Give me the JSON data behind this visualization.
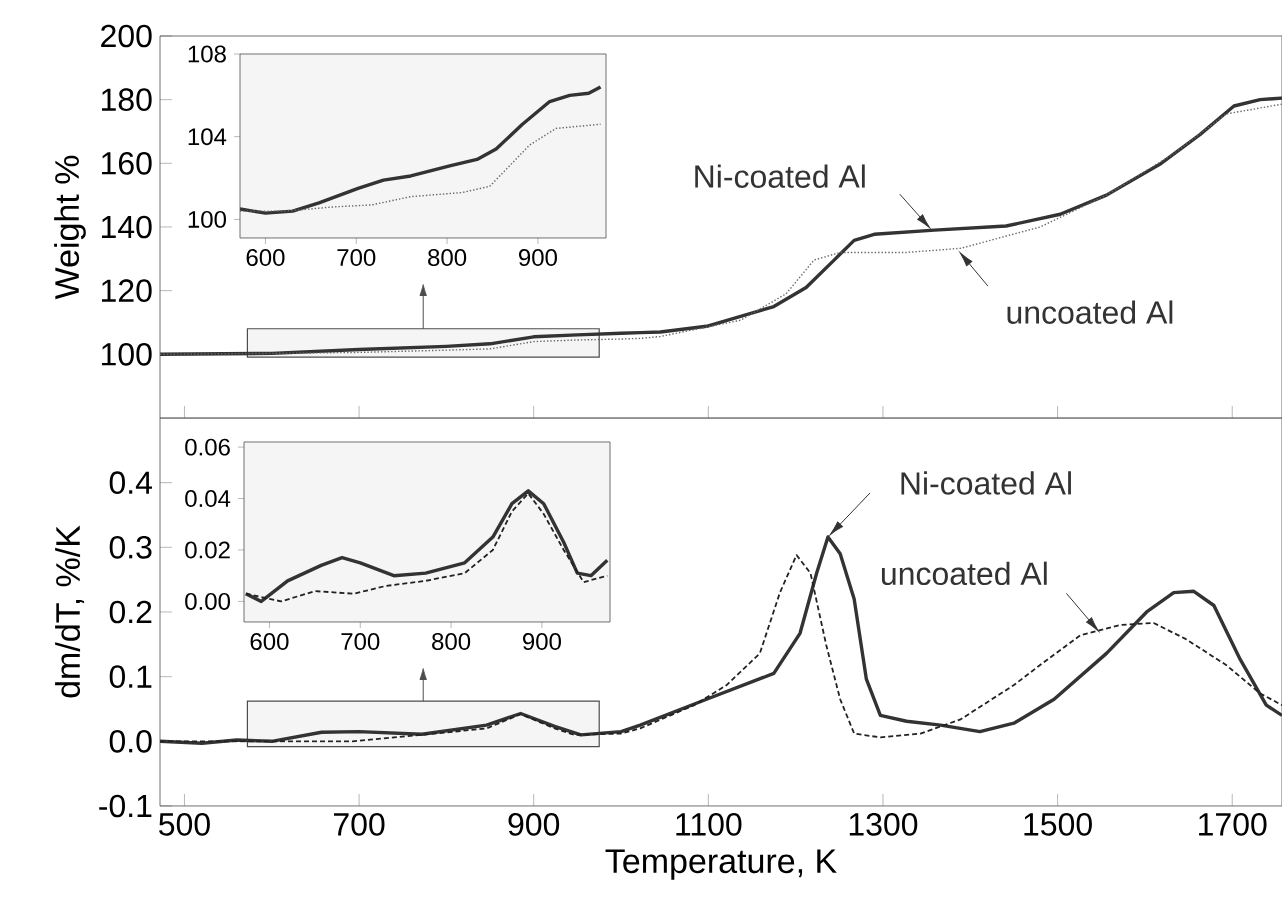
{
  "chart_data": [
    {
      "type": "line",
      "ylabel": "Weight %",
      "xlim": [
        472,
        1757
      ],
      "xticks": [
        500,
        700,
        900,
        1100,
        1300,
        1500,
        1700
      ],
      "ylim": [
        80,
        200
      ],
      "yticks": [
        100,
        120,
        140,
        160,
        180,
        200
      ],
      "tick_labels": "y",
      "series": [
        {
          "color": "#333333",
          "line_style": "solid",
          "x": [
            472,
            600,
            700,
            800,
            850,
            900,
            950,
            1000,
            1022,
            1045,
            1098,
            1175,
            1212,
            1244,
            1267,
            1290,
            1359,
            1441,
            1503,
            1556,
            1617,
            1663,
            1702,
            1732,
            1757
          ],
          "values": [
            100,
            100.3,
            101.5,
            102.5,
            103.3,
            105.5,
            106.1,
            106.6,
            106.8,
            107,
            108.8,
            115,
            121,
            129.6,
            135.8,
            137.7,
            139,
            140.3,
            144,
            150,
            159.7,
            169,
            178,
            180,
            180.5
          ]
        },
        {
          "color": "#666666",
          "line_style": "dotted",
          "x": [
            472,
            600,
            700,
            800,
            850,
            900,
            950,
            1000,
            1022,
            1045,
            1137,
            1189,
            1221,
            1251,
            1327,
            1389,
            1480,
            1556,
            1633,
            1693,
            1757
          ],
          "values": [
            100,
            100.3,
            100.6,
            101.3,
            101.7,
            104,
            104.5,
            104.8,
            105,
            105.6,
            110.7,
            119,
            129.6,
            132,
            132,
            133.3,
            140,
            150,
            163,
            175.5,
            178.6
          ]
        }
      ],
      "annotations": [
        {
          "text": "Ni-coated Al",
          "x": 1356,
          "y": 139
        },
        {
          "text": "uncoated Al",
          "x": 1386,
          "y": 132.7
        }
      ]
    },
    {
      "type": "line",
      "xlim": [
        572,
        975
      ],
      "xticks": [
        600,
        700,
        800,
        900
      ],
      "ylim": [
        99.1,
        108
      ],
      "yticks": [
        100,
        104,
        108
      ],
      "series": [
        {
          "color": "#333333",
          "line_style": "solid",
          "x": [
            572,
            600,
            630,
            659,
            702,
            730,
            760,
            804,
            833,
            854,
            883,
            913,
            935,
            956,
            969
          ],
          "values": [
            100.5,
            100.3,
            100.4,
            100.8,
            101.5,
            101.9,
            102.1,
            102.6,
            102.9,
            103.4,
            104.6,
            105.7,
            106,
            106.1,
            106.4
          ]
        },
        {
          "color": "#666666",
          "line_style": "dotted",
          "x": [
            572,
            622,
            674,
            717,
            760,
            817,
            847,
            869,
            891,
            920,
            969
          ],
          "values": [
            100.4,
            100.4,
            100.6,
            100.7,
            101.1,
            101.3,
            101.6,
            102.6,
            103.6,
            104.4,
            104.6
          ]
        }
      ]
    },
    {
      "type": "line",
      "xlabel": "Temperature, K",
      "ylabel": "dm/dT, %/K",
      "xlim": [
        472,
        1757
      ],
      "xticks": [
        500,
        700,
        900,
        1100,
        1300,
        1500,
        1700
      ],
      "ylim": [
        -0.1,
        0.5
      ],
      "yticks": [
        -0.1,
        {
          "value": 0,
          "label": "0.0"
        },
        0.1,
        0.2,
        0.3,
        0.4
      ],
      "series": [
        {
          "color": "#333333",
          "line_style": "solid",
          "x": [
            472,
            520,
            560,
            600,
            657,
            700,
            772,
            846,
            885,
            924,
            954,
            1000,
            1022,
            1098,
            1175,
            1205,
            1224,
            1237,
            1251,
            1267,
            1281,
            1297,
            1327,
            1366,
            1411,
            1450,
            1496,
            1556,
            1602,
            1633,
            1656,
            1679,
            1709,
            1739,
            1757
          ],
          "values": [
            0,
            -0.003,
            0.002,
            0,
            0.014,
            0.015,
            0.011,
            0.025,
            0.043,
            0.023,
            0.01,
            0.015,
            0.025,
            0.065,
            0.105,
            0.167,
            0.26,
            0.316,
            0.29,
            0.22,
            0.096,
            0.04,
            0.031,
            0.025,
            0.015,
            0.028,
            0.065,
            0.136,
            0.2,
            0.23,
            0.232,
            0.21,
            0.127,
            0.056,
            0.04
          ]
        },
        {
          "color": "#222222",
          "line_style": "dashed",
          "x": [
            472,
            560,
            613,
            693,
            772,
            846,
            885,
            924,
            946,
            1000,
            1022,
            1084,
            1121,
            1159,
            1182,
            1201,
            1217,
            1235,
            1251,
            1267,
            1297,
            1343,
            1389,
            1450,
            1480,
            1526,
            1572,
            1610,
            1647,
            1693,
            1732,
            1757
          ],
          "values": [
            0,
            0,
            0,
            0,
            0.01,
            0.02,
            0.042,
            0.02,
            0.01,
            0.012,
            0.02,
            0.056,
            0.087,
            0.136,
            0.23,
            0.288,
            0.26,
            0.149,
            0.065,
            0.012,
            0.006,
            0.012,
            0.034,
            0.087,
            0.118,
            0.164,
            0.18,
            0.183,
            0.158,
            0.118,
            0.074,
            0.056
          ]
        }
      ],
      "annotations": [
        {
          "text": "Ni-coated Al",
          "x": 1237,
          "y": 0.316
        },
        {
          "text": "uncoated Al",
          "x": 1549,
          "y": 0.167
        }
      ]
    },
    {
      "type": "line",
      "xlim": [
        572,
        975
      ],
      "xticks": [
        600,
        700,
        800,
        900
      ],
      "ylim": [
        -0.008,
        0.062
      ],
      "yticks": [
        {
          "value": 0,
          "label": "0.00"
        },
        0.02,
        0.04,
        0.06
      ],
      "series": [
        {
          "color": "#333333",
          "line_style": "solid",
          "x": [
            574,
            591,
            620,
            657,
            680,
            700,
            737,
            772,
            815,
            846,
            867,
            885,
            902,
            924,
            939,
            954,
            972
          ],
          "values": [
            0.003,
            0,
            0.008,
            0.014,
            0.017,
            0.015,
            0.01,
            0.011,
            0.015,
            0.025,
            0.038,
            0.043,
            0.038,
            0.023,
            0.011,
            0.01,
            0.016
          ]
        },
        {
          "color": "#222222",
          "line_style": "dashed",
          "x": [
            574,
            613,
            650,
            693,
            728,
            772,
            815,
            846,
            867,
            885,
            902,
            924,
            946,
            972
          ],
          "values": [
            0.003,
            0,
            0.004,
            0.003,
            0.006,
            0.008,
            0.011,
            0.02,
            0.035,
            0.042,
            0.034,
            0.02,
            0.0075,
            0.01
          ]
        }
      ]
    }
  ]
}
